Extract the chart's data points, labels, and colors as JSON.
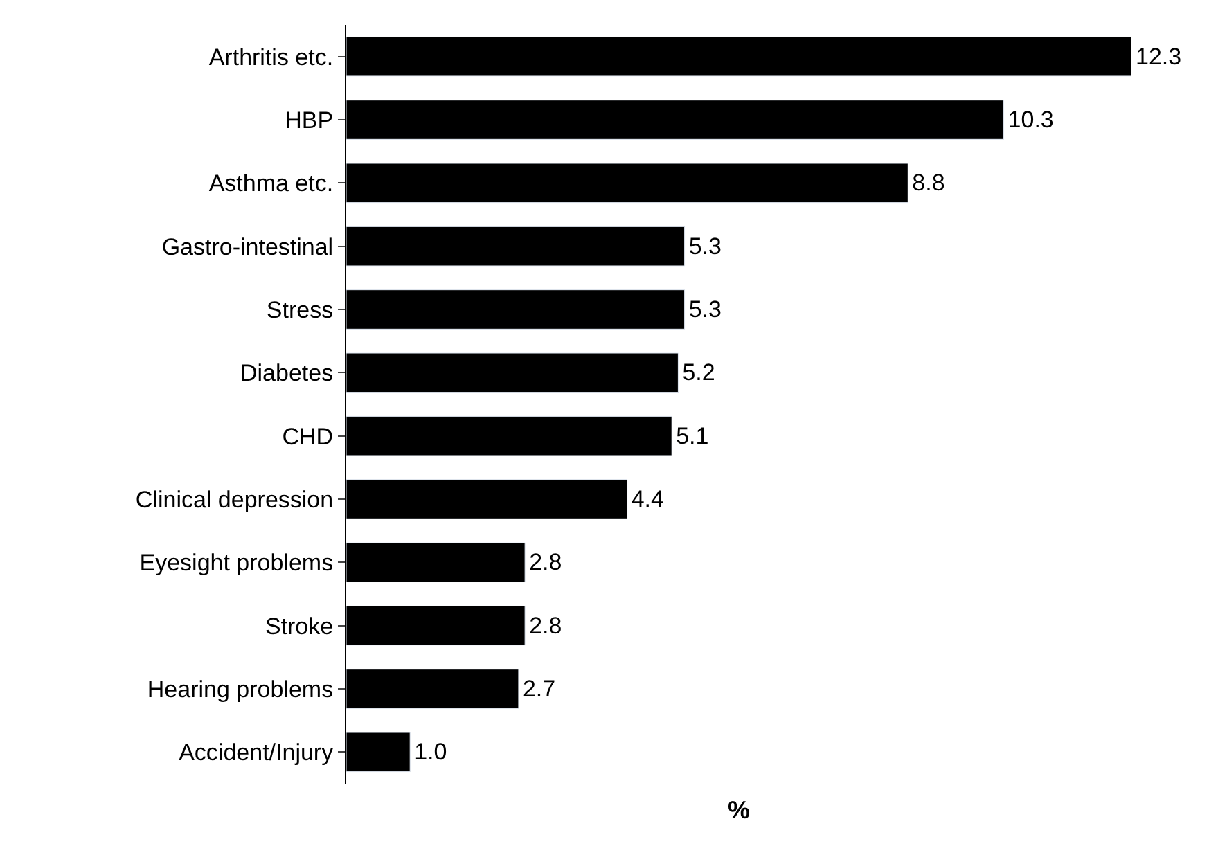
{
  "chart_data": {
    "type": "bar",
    "orientation": "horizontal",
    "xlabel": "%",
    "categories": [
      "Arthritis etc.",
      "HBP",
      "Asthma etc.",
      "Gastro-intestinal",
      "Stress",
      "Diabetes",
      "CHD",
      "Clinical depression",
      "Eyesight problems",
      "Stroke",
      "Hearing problems",
      "Accident/Injury"
    ],
    "values": [
      12.3,
      10.3,
      8.8,
      5.3,
      5.3,
      5.2,
      5.1,
      4.4,
      2.8,
      2.8,
      2.7,
      1.0
    ],
    "value_labels": [
      "12.3",
      "10.3",
      "8.8",
      "5.3",
      "5.3",
      "5.2",
      "5.1",
      "4.4",
      "2.8",
      "2.8",
      "2.7",
      "1.0"
    ],
    "color": "#000000"
  }
}
